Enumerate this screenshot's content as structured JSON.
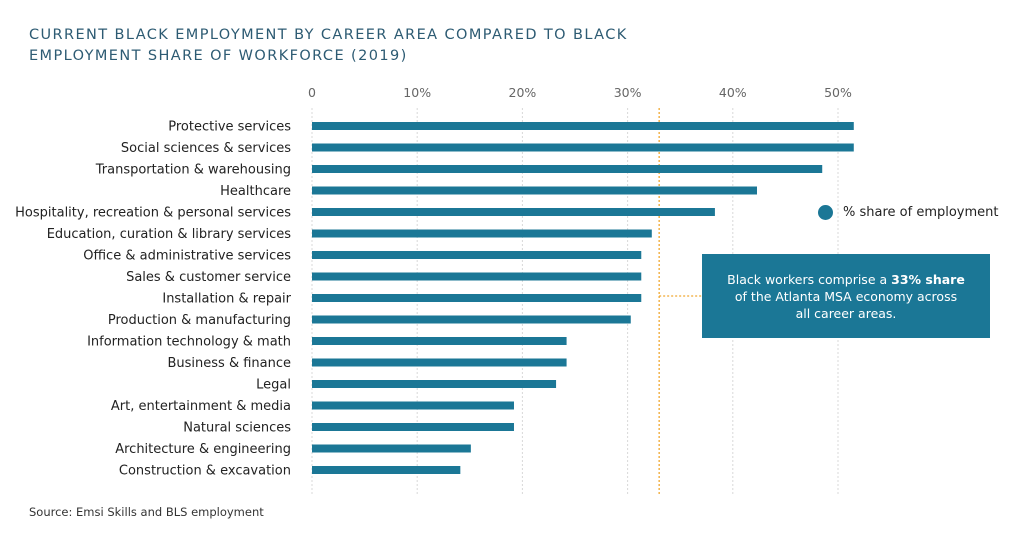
{
  "title_line1": "CURRENT BLACK EMPLOYMENT BY CAREER AREA COMPARED TO BLACK",
  "title_line2": "EMPLOYMENT SHARE OF WORKFORCE (2019)",
  "source": "Source: Emsi Skills and BLS employment",
  "legend_label": "% share of employment",
  "callout": {
    "prefix": "Black workers comprise a ",
    "bold": "33% share",
    "line2": "of the Atlanta MSA economy across",
    "line3": "all career areas."
  },
  "colors": {
    "bar": "#1b7796",
    "reference_line": "#f0a830",
    "grid": "#d8d8d8",
    "title": "#2d5b73"
  },
  "chart_data": {
    "type": "bar",
    "orientation": "horizontal",
    "title": "CURRENT BLACK EMPLOYMENT BY CAREER AREA COMPARED TO BLACK EMPLOYMENT SHARE OF WORKFORCE (2019)",
    "categories": [
      "Protective services",
      "Social sciences & services",
      "Transportation & warehousing",
      "Healthcare",
      "Hospitality, recreation & personal services",
      "Education, curation & library services",
      "Office & administrative services",
      "Sales & customer service",
      "Installation & repair",
      "Production & manufacturing",
      "Information technology & math",
      "Business & finance",
      "Legal",
      "Art, entertainment & media",
      "Natural sciences",
      "Architecture & engineering",
      "Construction & excavation"
    ],
    "series": [
      {
        "name": "% share of employment",
        "values": [
          51.5,
          51.5,
          48.5,
          42.3,
          38.3,
          32.3,
          31.3,
          31.3,
          31.3,
          30.3,
          24.2,
          24.2,
          23.2,
          19.2,
          19.2,
          15.1,
          14.1
        ]
      }
    ],
    "xlim": [
      0,
      55
    ],
    "xticks": [
      0,
      10,
      20,
      30,
      40,
      50
    ],
    "xtick_labels": [
      "0",
      "10%",
      "20%",
      "30%",
      "40%",
      "50%"
    ],
    "reference_value": 33,
    "grid": true,
    "legend_position": "right"
  }
}
